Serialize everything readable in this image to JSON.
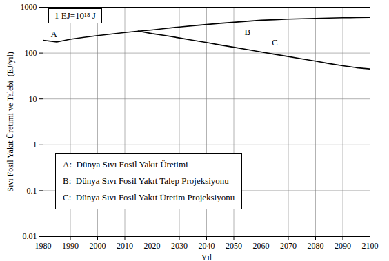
{
  "chart_data": {
    "type": "line",
    "x_label": "Yıl",
    "y_label": "Sıvı Fosil Yakıt Üretimi ve Talebi  (EJ/yıl)",
    "x": [
      1980,
      1985,
      1990,
      1995,
      2000,
      2005,
      2010,
      2015,
      2020,
      2025,
      2030,
      2035,
      2040,
      2045,
      2050,
      2055,
      2060,
      2065,
      2070,
      2075,
      2080,
      2085,
      2090,
      2095,
      2100
    ],
    "series": [
      {
        "name": "A:  Dünya Sıvı Fosil Yakıt Üretimi",
        "color": "#000000",
        "values": [
          190,
          175,
          200,
          220,
          240,
          260,
          280,
          300,
          null,
          null,
          null,
          null,
          null,
          null,
          null,
          null,
          null,
          null,
          null,
          null,
          null,
          null,
          null,
          null,
          null
        ]
      },
      {
        "name": "B:  Dünya Sıvı Fosil Yakıt Talep Projeksiyonu",
        "color": "#000000",
        "values": [
          null,
          null,
          null,
          null,
          null,
          null,
          null,
          300,
          320,
          345,
          370,
          395,
          420,
          445,
          470,
          495,
          520,
          535,
          550,
          560,
          570,
          580,
          590,
          595,
          600
        ]
      },
      {
        "name": "C:  Dünya Sıvı Fosil Yakıt Üretim Projeksiyonu",
        "color": "#000000",
        "values": [
          null,
          null,
          null,
          null,
          null,
          null,
          null,
          300,
          265,
          240,
          214,
          190,
          170,
          150,
          134,
          119,
          106,
          94,
          84,
          75,
          67,
          59,
          53,
          48,
          45
        ]
      }
    ],
    "xlim": [
      1980,
      2100
    ],
    "xticks": [
      1980,
      1990,
      2000,
      2010,
      2020,
      2030,
      2040,
      2050,
      2060,
      2070,
      2080,
      2090,
      2100
    ],
    "ylim": [
      0.01,
      1000
    ],
    "yticks": [
      0.01,
      0.1,
      1,
      10,
      100,
      1000
    ],
    "log": "y",
    "grid": true,
    "legend": "lower left",
    "annotations": [
      {
        "text": "1 EJ=10¹⁸ J"
      },
      {
        "text": "A",
        "x": 1984,
        "y": 260
      },
      {
        "text": "B",
        "x": 2055,
        "y": 280
      },
      {
        "text": "C",
        "x": 2065,
        "y": 170
      }
    ]
  }
}
